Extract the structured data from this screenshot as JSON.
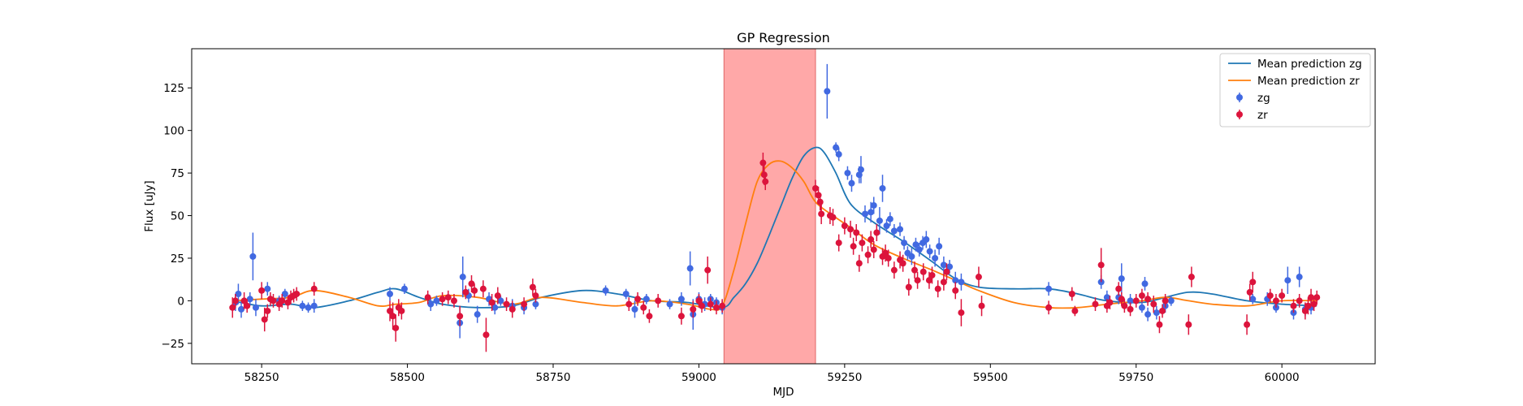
{
  "chart_data": {
    "type": "scatter",
    "title": "GP Regression",
    "xlabel": "MJD",
    "ylabel": "Flux [uJy]",
    "xlim": [
      58130,
      60160
    ],
    "ylim": [
      -37,
      148
    ],
    "xticks": [
      58250,
      58500,
      58750,
      59000,
      59250,
      59500,
      59750,
      60000
    ],
    "yticks": [
      -25,
      0,
      25,
      50,
      75,
      100,
      125
    ],
    "grid": false,
    "legend_position": "top-right",
    "shaded_region": {
      "x_start": 59043,
      "x_end": 59200,
      "color": "#ff9999"
    },
    "series": [
      {
        "name": "Mean prediction zg",
        "kind": "line",
        "color": "#1f77b4",
        "x": [
          58200,
          58250,
          58300,
          58340,
          58400,
          58450,
          58480,
          58520,
          58560,
          58620,
          58680,
          58730,
          58800,
          58860,
          58920,
          58980,
          59040,
          59060,
          59080,
          59100,
          59120,
          59140,
          59160,
          59180,
          59200,
          59215,
          59235,
          59260,
          59300,
          59350,
          59400,
          59440,
          59480,
          59540,
          59600,
          59650,
          59700,
          59760,
          59800,
          59840,
          59880,
          59940,
          60000,
          60060
        ],
        "y": [
          0,
          -3,
          -2,
          -4,
          0,
          5,
          7,
          2,
          -2,
          -4,
          -3,
          2,
          6,
          4,
          0,
          -1,
          -4,
          2,
          10,
          22,
          38,
          55,
          72,
          85,
          90,
          87,
          75,
          57,
          46,
          35,
          23,
          13,
          8,
          7,
          7,
          4,
          0,
          -1,
          2,
          5,
          4,
          0,
          -2,
          -3
        ]
      },
      {
        "name": "Mean prediction zr",
        "kind": "line",
        "color": "#ff7f0e",
        "x": [
          58200,
          58250,
          58300,
          58340,
          58400,
          58450,
          58480,
          58520,
          58560,
          58620,
          58680,
          58730,
          58800,
          58860,
          58920,
          58980,
          59020,
          59040,
          59060,
          59080,
          59100,
          59120,
          59140,
          59160,
          59180,
          59200,
          59230,
          59260,
          59300,
          59350,
          59400,
          59440,
          59480,
          59540,
          59600,
          59650,
          59700,
          59760,
          59800,
          59840,
          59880,
          59940,
          60000,
          60060
        ],
        "y": [
          0,
          1,
          2,
          6,
          2,
          -3,
          -2,
          -1,
          3,
          2,
          -2,
          2,
          -1,
          -3,
          0,
          -2,
          -5,
          -3,
          18,
          45,
          70,
          80,
          82,
          78,
          70,
          58,
          50,
          43,
          33,
          25,
          18,
          12,
          6,
          -1,
          -4,
          -4,
          -2,
          0,
          2,
          0,
          -2,
          -3,
          0,
          0
        ]
      },
      {
        "name": "zg",
        "kind": "errorbar",
        "color": "#4169e1",
        "points": [
          [
            58205,
            -1,
            5
          ],
          [
            58210,
            4,
            6
          ],
          [
            58215,
            -5,
            5
          ],
          [
            58230,
            1,
            4
          ],
          [
            58235,
            26,
            14
          ],
          [
            58240,
            -4,
            5
          ],
          [
            58260,
            7,
            4
          ],
          [
            58280,
            0,
            3
          ],
          [
            58290,
            4,
            3
          ],
          [
            58320,
            -3,
            3
          ],
          [
            58330,
            -4,
            3
          ],
          [
            58340,
            -3,
            4
          ],
          [
            58470,
            4,
            4
          ],
          [
            58495,
            7,
            3
          ],
          [
            58540,
            -2,
            4
          ],
          [
            58550,
            0,
            3
          ],
          [
            58590,
            -13,
            9
          ],
          [
            58595,
            14,
            12
          ],
          [
            58605,
            3,
            4
          ],
          [
            58620,
            -8,
            5
          ],
          [
            58640,
            1,
            4
          ],
          [
            58650,
            -4,
            4
          ],
          [
            58660,
            0,
            3
          ],
          [
            58680,
            -3,
            4
          ],
          [
            58700,
            -4,
            4
          ],
          [
            58720,
            -2,
            3
          ],
          [
            58840,
            6,
            3
          ],
          [
            58875,
            4,
            3
          ],
          [
            58890,
            -5,
            5
          ],
          [
            58910,
            1,
            3
          ],
          [
            58950,
            -2,
            3
          ],
          [
            58970,
            1,
            4
          ],
          [
            58985,
            19,
            10
          ],
          [
            58990,
            -8,
            9
          ],
          [
            59000,
            1,
            4
          ],
          [
            59010,
            -2,
            4
          ],
          [
            59020,
            1,
            3
          ],
          [
            59030,
            -1,
            3
          ],
          [
            59040,
            -4,
            4
          ],
          [
            59220,
            123,
            16
          ],
          [
            59235,
            90,
            3
          ],
          [
            59240,
            86,
            4
          ],
          [
            59255,
            75,
            4
          ],
          [
            59262,
            69,
            5
          ],
          [
            59275,
            74,
            5
          ],
          [
            59278,
            77,
            8
          ],
          [
            59285,
            51,
            5
          ],
          [
            59295,
            52,
            6
          ],
          [
            59300,
            56,
            5
          ],
          [
            59310,
            47,
            8
          ],
          [
            59315,
            66,
            8
          ],
          [
            59322,
            44,
            4
          ],
          [
            59328,
            48,
            4
          ],
          [
            59335,
            41,
            4
          ],
          [
            59345,
            42,
            4
          ],
          [
            59352,
            34,
            4
          ],
          [
            59358,
            28,
            4
          ],
          [
            59365,
            26,
            5
          ],
          [
            59372,
            33,
            4
          ],
          [
            59378,
            30,
            4
          ],
          [
            59384,
            34,
            4
          ],
          [
            59390,
            36,
            5
          ],
          [
            59396,
            29,
            4
          ],
          [
            59405,
            25,
            5
          ],
          [
            59412,
            32,
            5
          ],
          [
            59420,
            21,
            5
          ],
          [
            59430,
            20,
            4
          ],
          [
            59440,
            12,
            5
          ],
          [
            59450,
            11,
            5
          ],
          [
            59600,
            7,
            4
          ],
          [
            59690,
            11,
            4
          ],
          [
            59700,
            2,
            4
          ],
          [
            59720,
            2,
            4
          ],
          [
            59725,
            13,
            9
          ],
          [
            59740,
            0,
            4
          ],
          [
            59760,
            -4,
            3
          ],
          [
            59765,
            10,
            4
          ],
          [
            59770,
            -8,
            4
          ],
          [
            59785,
            -7,
            4
          ],
          [
            59800,
            -3,
            4
          ],
          [
            59810,
            0,
            3
          ],
          [
            59950,
            1,
            3
          ],
          [
            59975,
            1,
            4
          ],
          [
            59990,
            -4,
            3
          ],
          [
            60010,
            12,
            8
          ],
          [
            60020,
            -7,
            4
          ],
          [
            60030,
            14,
            6
          ],
          [
            60040,
            -5,
            4
          ],
          [
            60050,
            -4,
            4
          ]
        ]
      },
      {
        "name": "zr",
        "kind": "errorbar",
        "color": "#dc143c",
        "points": [
          [
            58200,
            -4,
            6
          ],
          [
            58205,
            0,
            4
          ],
          [
            58220,
            0,
            5
          ],
          [
            58225,
            -3,
            4
          ],
          [
            58250,
            6,
            5
          ],
          [
            58255,
            -11,
            7
          ],
          [
            58260,
            -6,
            4
          ],
          [
            58265,
            1,
            4
          ],
          [
            58270,
            0,
            4
          ],
          [
            58280,
            -2,
            4
          ],
          [
            58285,
            0,
            4
          ],
          [
            58295,
            -1,
            4
          ],
          [
            58300,
            2,
            4
          ],
          [
            58305,
            3,
            4
          ],
          [
            58310,
            4,
            4
          ],
          [
            58340,
            7,
            4
          ],
          [
            58470,
            -6,
            6
          ],
          [
            58475,
            -9,
            8
          ],
          [
            58480,
            -16,
            8
          ],
          [
            58485,
            -4,
            5
          ],
          [
            58490,
            -6,
            5
          ],
          [
            58535,
            2,
            4
          ],
          [
            58560,
            1,
            4
          ],
          [
            58570,
            2,
            4
          ],
          [
            58580,
            0,
            4
          ],
          [
            58590,
            -9,
            6
          ],
          [
            58600,
            5,
            4
          ],
          [
            58610,
            10,
            5
          ],
          [
            58615,
            6,
            4
          ],
          [
            58630,
            7,
            5
          ],
          [
            58635,
            -20,
            10
          ],
          [
            58645,
            -1,
            5
          ],
          [
            58655,
            3,
            5
          ],
          [
            58670,
            -2,
            4
          ],
          [
            58680,
            -5,
            5
          ],
          [
            58700,
            -2,
            4
          ],
          [
            58715,
            8,
            5
          ],
          [
            58720,
            3,
            4
          ],
          [
            58880,
            -2,
            4
          ],
          [
            58895,
            1,
            4
          ],
          [
            58905,
            -4,
            4
          ],
          [
            58915,
            -9,
            4
          ],
          [
            58930,
            0,
            4
          ],
          [
            58970,
            -9,
            5
          ],
          [
            58990,
            -5,
            5
          ],
          [
            59000,
            0,
            4
          ],
          [
            59005,
            -3,
            4
          ],
          [
            59015,
            18,
            8
          ],
          [
            59020,
            -2,
            4
          ],
          [
            59030,
            -4,
            4
          ],
          [
            59040,
            -3,
            4
          ],
          [
            59110,
            81,
            6
          ],
          [
            59112,
            74,
            6
          ],
          [
            59114,
            70,
            5
          ],
          [
            59200,
            66,
            5
          ],
          [
            59205,
            62,
            5
          ],
          [
            59208,
            58,
            5
          ],
          [
            59210,
            51,
            6
          ],
          [
            59225,
            50,
            5
          ],
          [
            59230,
            49,
            5
          ],
          [
            59240,
            34,
            5
          ],
          [
            59250,
            44,
            5
          ],
          [
            59260,
            42,
            5
          ],
          [
            59265,
            32,
            5
          ],
          [
            59270,
            40,
            5
          ],
          [
            59275,
            22,
            5
          ],
          [
            59280,
            34,
            5
          ],
          [
            59290,
            27,
            5
          ],
          [
            59295,
            36,
            5
          ],
          [
            59300,
            30,
            5
          ],
          [
            59305,
            40,
            5
          ],
          [
            59315,
            26,
            5
          ],
          [
            59320,
            28,
            5
          ],
          [
            59325,
            25,
            5
          ],
          [
            59335,
            18,
            5
          ],
          [
            59345,
            24,
            5
          ],
          [
            59350,
            22,
            5
          ],
          [
            59360,
            8,
            5
          ],
          [
            59370,
            18,
            5
          ],
          [
            59375,
            12,
            5
          ],
          [
            59385,
            17,
            5
          ],
          [
            59395,
            12,
            5
          ],
          [
            59400,
            15,
            5
          ],
          [
            59410,
            7,
            5
          ],
          [
            59420,
            11,
            5
          ],
          [
            59425,
            17,
            5
          ],
          [
            59440,
            6,
            5
          ],
          [
            59450,
            -7,
            8
          ],
          [
            59480,
            14,
            6
          ],
          [
            59485,
            -3,
            6
          ],
          [
            59600,
            -4,
            4
          ],
          [
            59640,
            4,
            4
          ],
          [
            59645,
            -6,
            3
          ],
          [
            59680,
            -2,
            4
          ],
          [
            59690,
            21,
            10
          ],
          [
            59700,
            -3,
            4
          ],
          [
            59705,
            -1,
            4
          ],
          [
            59720,
            7,
            4
          ],
          [
            59725,
            1,
            4
          ],
          [
            59730,
            -3,
            4
          ],
          [
            59740,
            -5,
            4
          ],
          [
            59750,
            0,
            4
          ],
          [
            59760,
            3,
            4
          ],
          [
            59770,
            1,
            4
          ],
          [
            59780,
            -2,
            5
          ],
          [
            59790,
            -14,
            5
          ],
          [
            59795,
            -6,
            4
          ],
          [
            59800,
            0,
            4
          ],
          [
            59840,
            -14,
            6
          ],
          [
            59845,
            14,
            6
          ],
          [
            59940,
            -14,
            6
          ],
          [
            59945,
            5,
            5
          ],
          [
            59950,
            11,
            6
          ],
          [
            59980,
            3,
            4
          ],
          [
            59990,
            0,
            4
          ],
          [
            60000,
            3,
            4
          ],
          [
            60020,
            -3,
            4
          ],
          [
            60030,
            0,
            4
          ],
          [
            60040,
            -6,
            5
          ],
          [
            60045,
            -3,
            5
          ],
          [
            60050,
            2,
            5
          ],
          [
            60055,
            -2,
            4
          ],
          [
            60060,
            2,
            4
          ]
        ]
      }
    ]
  }
}
